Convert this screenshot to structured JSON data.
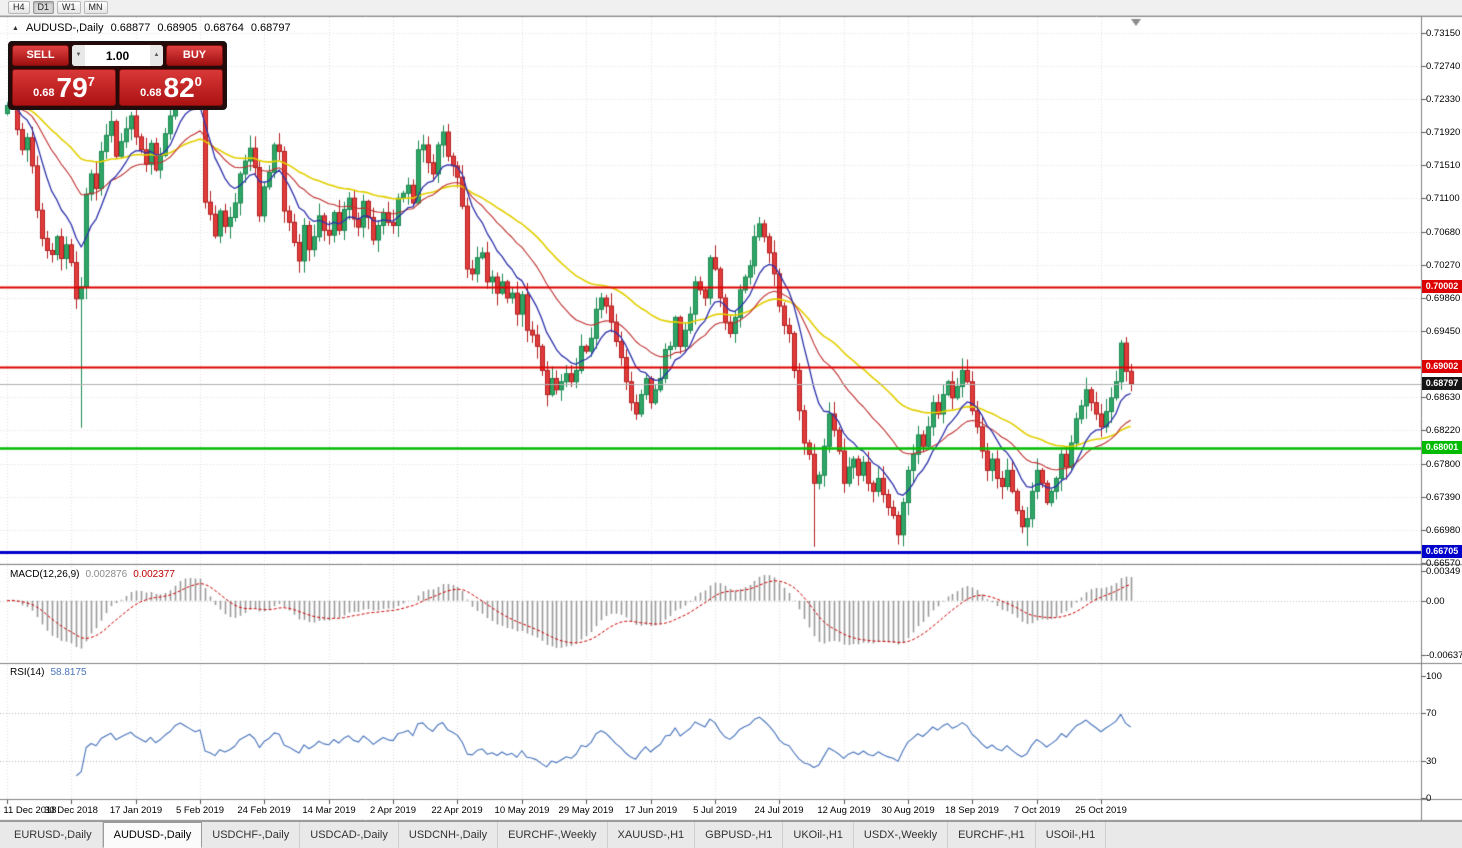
{
  "toolbar": {
    "timeframes": [
      "H4",
      "D1",
      "W1",
      "MN"
    ],
    "active": "D1"
  },
  "icons": {
    "symbol_marker": "▲",
    "spin_up": "▲",
    "spin_down": "▼"
  },
  "chart": {
    "symbol_label": "AUDUSD-,Daily",
    "ohlc": {
      "o": "0.68877",
      "h": "0.68905",
      "l": "0.68764",
      "c": "0.68797"
    },
    "trade_panel": {
      "sell_label": "SELL",
      "buy_label": "BUY",
      "volume": "1.00",
      "sell_price": {
        "prefix": "0.68",
        "big": "79",
        "sup": "7"
      },
      "buy_price": {
        "prefix": "0.68",
        "big": "82",
        "sup": "0"
      }
    },
    "levels": [
      {
        "label": "0.70002",
        "price": 0.70002,
        "color": "#dd0000",
        "line_width": 2
      },
      {
        "label": "0.69002",
        "price": 0.69002,
        "color": "#dd0000",
        "line_width": 2
      },
      {
        "label": "0.68001",
        "price": 0.68001,
        "color": "#00bb00",
        "line_width": 2.5
      },
      {
        "label": "0.66705",
        "price": 0.66705,
        "color": "#0000cc",
        "line_width": 3
      }
    ],
    "current_price_label": "0.68797",
    "current_price": 0.68797,
    "y_ticks": [
      {
        "label": "0.73150",
        "value": 0.7315
      },
      {
        "label": "0.72740",
        "value": 0.7274
      },
      {
        "label": "0.72330",
        "value": 0.7233
      },
      {
        "label": "0.71920",
        "value": 0.7192
      },
      {
        "label": "0.71510",
        "value": 0.7151
      },
      {
        "label": "0.71100",
        "value": 0.711
      },
      {
        "label": "0.70680",
        "value": 0.7068
      },
      {
        "label": "0.70270",
        "value": 0.7027
      },
      {
        "label": "0.69860",
        "value": 0.6986
      },
      {
        "label": "0.69450",
        "value": 0.6945
      },
      {
        "label": "0.68630",
        "value": 0.6863
      },
      {
        "label": "0.68220",
        "value": 0.6822
      },
      {
        "label": "0.67800",
        "value": 0.678
      },
      {
        "label": "0.67390",
        "value": 0.6739
      },
      {
        "label": "0.66980",
        "value": 0.6698
      },
      {
        "label": "0.66570",
        "value": 0.6657
      }
    ]
  },
  "macd_panel": {
    "name": "MACD(12,26,9)",
    "value1": "0.002876",
    "value2": "0.002377",
    "ticks": [
      {
        "label": "0.00349",
        "value": 0.00349
      },
      {
        "label": "0.00",
        "value": 0
      },
      {
        "label": "-0.00637",
        "value": -0.00637
      }
    ]
  },
  "rsi_panel": {
    "name": "RSI(14)",
    "value": "58.8175",
    "ticks": [
      {
        "label": "100",
        "value": 100
      },
      {
        "label": "70",
        "value": 70
      },
      {
        "label": "30",
        "value": 30
      },
      {
        "label": "0",
        "value": 0
      }
    ],
    "levels": [
      70,
      30
    ]
  },
  "x_labels": [
    {
      "i": 0,
      "text": "11 Dec 2018"
    },
    {
      "i": 13,
      "text": "30 Dec 2018"
    },
    {
      "i": 26,
      "text": "17 Jan 2019"
    },
    {
      "i": 39,
      "text": "5 Feb 2019"
    },
    {
      "i": 52,
      "text": "24 Feb 2019"
    },
    {
      "i": 65,
      "text": "14 Mar 2019"
    },
    {
      "i": 78,
      "text": "2 Apr 2019"
    },
    {
      "i": 91,
      "text": "22 Apr 2019"
    },
    {
      "i": 104,
      "text": "10 May 2019"
    },
    {
      "i": 117,
      "text": "29 May 2019"
    },
    {
      "i": 130,
      "text": "17 Jun 2019"
    },
    {
      "i": 143,
      "text": "5 Jul 2019"
    },
    {
      "i": 156,
      "text": "24 Jul 2019"
    },
    {
      "i": 169,
      "text": "12 Aug 2019"
    },
    {
      "i": 182,
      "text": "30 Aug 2019"
    },
    {
      "i": 195,
      "text": "18 Sep 2019"
    },
    {
      "i": 208,
      "text": "7 Oct 2019"
    },
    {
      "i": 221,
      "text": "25 Oct 2019"
    }
  ],
  "chart_data": {
    "type": "candlestick",
    "symbol": "AUDUSD",
    "timeframe": "Daily",
    "y_range": [
      0.6657,
      0.7315
    ],
    "first_open": 0.7215,
    "closes": [
      0.7225,
      0.724,
      0.7195,
      0.717,
      0.7185,
      0.715,
      0.7095,
      0.706,
      0.7045,
      0.704,
      0.7062,
      0.7035,
      0.7052,
      0.703,
      0.6985,
      0.7,
      0.7115,
      0.714,
      0.7122,
      0.7168,
      0.7188,
      0.7205,
      0.7162,
      0.718,
      0.7196,
      0.7212,
      0.7186,
      0.717,
      0.7152,
      0.7178,
      0.7145,
      0.7163,
      0.719,
      0.7212,
      0.7252,
      0.727,
      0.7256,
      0.7242,
      0.7228,
      0.7238,
      0.7105,
      0.709,
      0.7063,
      0.7094,
      0.7075,
      0.7086,
      0.7104,
      0.714,
      0.7156,
      0.7172,
      0.7148,
      0.7088,
      0.7124,
      0.7142,
      0.7176,
      0.7168,
      0.7094,
      0.708,
      0.7055,
      0.7032,
      0.7076,
      0.7046,
      0.7062,
      0.7088,
      0.707,
      0.7064,
      0.7092,
      0.707,
      0.7096,
      0.711,
      0.7084,
      0.7074,
      0.7106,
      0.7086,
      0.7058,
      0.7076,
      0.7092,
      0.708,
      0.7076,
      0.711,
      0.7116,
      0.7126,
      0.7104,
      0.717,
      0.7176,
      0.7154,
      0.714,
      0.7176,
      0.7192,
      0.7162,
      0.715,
      0.7136,
      0.71,
      0.7022,
      0.7016,
      0.7036,
      0.7042,
      0.7006,
      0.7012,
      0.6992,
      0.7006,
      0.6986,
      0.6992,
      0.6966,
      0.699,
      0.6946,
      0.694,
      0.6926,
      0.6896,
      0.6866,
      0.6886,
      0.6872,
      0.6882,
      0.6892,
      0.6882,
      0.6896,
      0.6926,
      0.692,
      0.6936,
      0.6972,
      0.6986,
      0.6976,
      0.6956,
      0.6932,
      0.6912,
      0.6882,
      0.6856,
      0.6842,
      0.6866,
      0.6886,
      0.6856,
      0.6872,
      0.6886,
      0.6922,
      0.6926,
      0.6962,
      0.6926,
      0.6946,
      0.6966,
      0.7006,
      0.6996,
      0.6986,
      0.7036,
      0.7022,
      0.6986,
      0.6956,
      0.6942,
      0.6962,
      0.6996,
      0.7012,
      0.7026,
      0.7062,
      0.7078,
      0.7062,
      0.7042,
      0.7016,
      0.6976,
      0.6952,
      0.6942,
      0.6896,
      0.6846,
      0.6806,
      0.6792,
      0.6756,
      0.6766,
      0.6802,
      0.6842,
      0.6822,
      0.6796,
      0.6756,
      0.6776,
      0.6786,
      0.6766,
      0.6782,
      0.6756,
      0.6746,
      0.6762,
      0.6742,
      0.6726,
      0.6716,
      0.6692,
      0.6732,
      0.6772,
      0.6792,
      0.6816,
      0.6802,
      0.6826,
      0.6856,
      0.6842,
      0.6866,
      0.6882,
      0.6862,
      0.6876,
      0.6896,
      0.6882,
      0.6846,
      0.6826,
      0.6796,
      0.6772,
      0.6786,
      0.6762,
      0.6752,
      0.6772,
      0.6746,
      0.6722,
      0.6702,
      0.6712,
      0.6746,
      0.6772,
      0.6756,
      0.6732,
      0.6746,
      0.6762,
      0.6792,
      0.6776,
      0.6806,
      0.6836,
      0.6852,
      0.6872,
      0.6856,
      0.6842,
      0.6826,
      0.6845,
      0.6862,
      0.6882,
      0.693,
      0.6895,
      0.68797
    ],
    "overrides": {
      "15": {
        "low": 0.6825,
        "high": 0.7012
      },
      "163": {
        "low": 0.6677
      },
      "180": {
        "low": 0.668
      },
      "206": {
        "low": 0.6678
      },
      "225": {
        "high": 0.6934
      }
    },
    "colors": {
      "bull": "#2fa566",
      "bull_edge": "#1e8a52",
      "bear": "#e23b3b",
      "bear_edge": "#b32020",
      "grid": "#e2e2e2",
      "separator": "#808080",
      "current_line": "#b0b0b0"
    },
    "moving_averages": [
      {
        "period": 50,
        "color": "#e3cf00",
        "width": 1.6
      },
      {
        "period": 25,
        "color": "#c03030",
        "width": 1.1
      },
      {
        "period": 10,
        "color": "#2d32aa",
        "width": 1.3
      }
    ],
    "macd": {
      "fast": 12,
      "slow": 26,
      "signal": 9,
      "scale_max": 0.00349,
      "scale_min": -0.00637,
      "hist_color": "#9a9a9a",
      "signal_color": "#cc0000"
    },
    "rsi": {
      "period": 14,
      "value": 58.8175,
      "color": "#4874bc"
    }
  },
  "tabs": [
    "EURUSD-,Daily",
    "AUDUSD-,Daily",
    "USDCHF-,Daily",
    "USDCAD-,Daily",
    "USDCNH-,Daily",
    "EURCHF-,Weekly",
    "XAUUSD-,H1",
    "GBPUSD-,H1",
    "UKOil-,H1",
    "USDX-,Weekly",
    "EURCHF-,H1",
    "USOil-,H1"
  ],
  "active_tab": "AUDUSD-,Daily"
}
